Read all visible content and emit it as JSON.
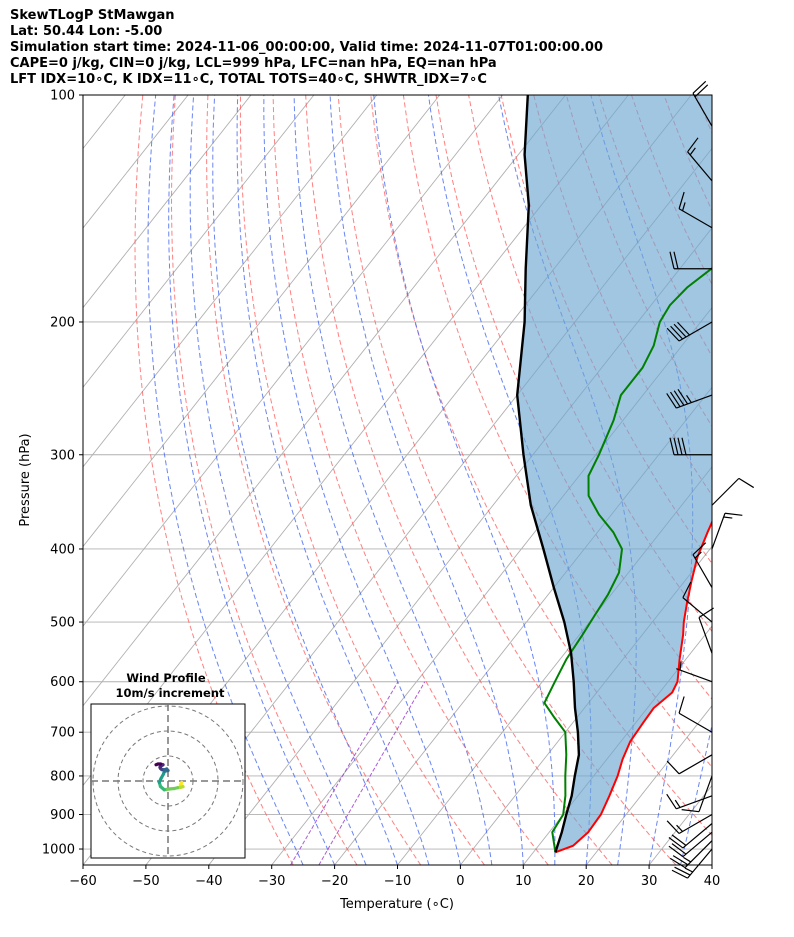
{
  "title_lines": [
    "SkewTLogP StMawgan",
    "Lat: 50.44   Lon: -5.00",
    "Simulation start time: 2024-11-06_00:00:00, Valid time: 2024-11-07T01:00:00.00",
    "CAPE=0 j/kg, CIN=0 j/kg, LCL=999 hPa, LFC=nan hPa, EQ=nan hPa",
    "LFT IDX=10∘C, K IDX=11∘C, TOTAL TOTS=40∘C, SHWTR_IDX=7∘C"
  ],
  "chart_data": [
    {
      "type": "line",
      "kind": "skew-t log-p sounding",
      "xlabel": "Temperature (∘C)",
      "ylabel": "Pressure (hPa)",
      "xlim": [
        -60,
        40
      ],
      "ylim": [
        1050,
        100
      ],
      "y_scale": "log",
      "x_ticks": [
        -60,
        -50,
        -40,
        -30,
        -20,
        -10,
        0,
        10,
        20,
        30,
        40
      ],
      "y_ticks": [
        1000,
        900,
        800,
        700,
        600,
        500,
        400,
        300,
        200,
        100
      ],
      "grid": true,
      "series": [
        {
          "role": "temperature",
          "color": "#ff0000",
          "points": [
            [
              13.5,
              1010
            ],
            [
              15.5,
              990
            ],
            [
              16.2,
              950
            ],
            [
              16.0,
              900
            ],
            [
              15.0,
              850
            ],
            [
              13.8,
              800
            ],
            [
              12.5,
              760
            ],
            [
              11.5,
              720
            ],
            [
              11.2,
              680
            ],
            [
              11.0,
              650
            ],
            [
              12.0,
              620
            ],
            [
              11.5,
              600
            ],
            [
              9.0,
              560
            ],
            [
              6.5,
              520
            ],
            [
              5.0,
              500
            ],
            [
              3.0,
              470
            ],
            [
              1.0,
              440
            ],
            [
              -1.0,
              410
            ],
            [
              -2.5,
              380
            ],
            [
              -4.0,
              350
            ],
            [
              -6.0,
              320
            ],
            [
              -8.0,
              300
            ],
            [
              -10.0,
              280
            ],
            [
              -13.0,
              260
            ],
            [
              -16.0,
              240
            ],
            [
              -18.5,
              220
            ],
            [
              -20.5,
              200
            ],
            [
              -21.5,
              190
            ],
            [
              -21.3,
              180
            ],
            [
              -20.8,
              170
            ],
            [
              -20.0,
              160
            ],
            [
              -19.0,
              150
            ],
            [
              -17.5,
              140
            ],
            [
              -15.0,
              132
            ],
            [
              -12.0,
              125
            ],
            [
              -9.0,
              119
            ],
            [
              -6.0,
              114
            ],
            [
              -3.5,
              109
            ],
            [
              -1.0,
              104
            ],
            [
              0.5,
              100
            ]
          ]
        },
        {
          "role": "dewpoint",
          "color": "#008000",
          "points": [
            [
              13.5,
              1010
            ],
            [
              10.5,
              950
            ],
            [
              10.0,
              900
            ],
            [
              8.0,
              850
            ],
            [
              5.5,
              800
            ],
            [
              3.0,
              750
            ],
            [
              0.0,
              700
            ],
            [
              -3.5,
              670
            ],
            [
              -7.0,
              640
            ],
            [
              -8.0,
              600
            ],
            [
              -9.0,
              560
            ],
            [
              -9.5,
              520
            ],
            [
              -10.0,
              490
            ],
            [
              -10.5,
              460
            ],
            [
              -11.5,
              430
            ],
            [
              -14.0,
              400
            ],
            [
              -17.5,
              380
            ],
            [
              -22.0,
              360
            ],
            [
              -26.0,
              340
            ],
            [
              -28.5,
              320
            ],
            [
              -29.5,
              300
            ],
            [
              -31.5,
              270
            ],
            [
              -33.5,
              250
            ],
            [
              -33.5,
              230
            ],
            [
              -34.5,
              215
            ],
            [
              -36.5,
              200
            ],
            [
              -37.0,
              190
            ],
            [
              -36.5,
              180
            ],
            [
              -35.0,
              170
            ],
            [
              -32.5,
              160
            ],
            [
              -29.5,
              150
            ],
            [
              -28.0,
              140
            ],
            [
              -29.0,
              131
            ],
            [
              -32.0,
              126
            ],
            [
              -30.5,
              120
            ],
            [
              -28.5,
              115
            ],
            [
              -26.0,
              110
            ],
            [
              -24.0,
              105
            ],
            [
              -22.5,
              100
            ]
          ]
        },
        {
          "role": "parcel",
          "color": "#000000",
          "points": [
            [
              13.5,
              1010
            ],
            [
              12.0,
              950
            ],
            [
              10.5,
              900
            ],
            [
              9.0,
              850
            ],
            [
              7.0,
              800
            ],
            [
              5.0,
              750
            ],
            [
              2.0,
              700
            ],
            [
              -1.5,
              650
            ],
            [
              -5.0,
              600
            ],
            [
              -9.0,
              550
            ],
            [
              -14.0,
              500
            ],
            [
              -20.0,
              450
            ],
            [
              -26.5,
              400
            ],
            [
              -34.0,
              350
            ],
            [
              -41.5,
              300
            ],
            [
              -50.0,
              250
            ],
            [
              -58.0,
              200
            ],
            [
              -64.5,
              170
            ],
            [
              -72.0,
              140
            ],
            [
              -79.0,
              120
            ],
            [
              -86.0,
              100
            ]
          ]
        }
      ],
      "wind_barbs": [
        {
          "p": 1000,
          "speed_kt": 25,
          "dir_deg": 220
        },
        {
          "p": 975,
          "speed_kt": 25,
          "dir_deg": 225
        },
        {
          "p": 950,
          "speed_kt": 20,
          "dir_deg": 230
        },
        {
          "p": 925,
          "speed_kt": 20,
          "dir_deg": 230
        },
        {
          "p": 900,
          "speed_kt": 15,
          "dir_deg": 240
        },
        {
          "p": 850,
          "speed_kt": 15,
          "dir_deg": 250
        },
        {
          "p": 800,
          "speed_kt": 10,
          "dir_deg": 200
        },
        {
          "p": 750,
          "speed_kt": 10,
          "dir_deg": 240
        },
        {
          "p": 700,
          "speed_kt": 10,
          "dir_deg": 300
        },
        {
          "p": 600,
          "speed_kt": 5,
          "dir_deg": 290
        },
        {
          "p": 550,
          "speed_kt": 10,
          "dir_deg": 340
        },
        {
          "p": 500,
          "speed_kt": 10,
          "dir_deg": 310
        },
        {
          "p": 450,
          "speed_kt": 15,
          "dir_deg": 330
        },
        {
          "p": 400,
          "speed_kt": 15,
          "dir_deg": 20
        },
        {
          "p": 350,
          "speed_kt": 10,
          "dir_deg": 45
        },
        {
          "p": 300,
          "speed_kt": 40,
          "dir_deg": 270
        },
        {
          "p": 250,
          "speed_kt": 45,
          "dir_deg": 250
        },
        {
          "p": 200,
          "speed_kt": 40,
          "dir_deg": 240
        },
        {
          "p": 170,
          "speed_kt": 20,
          "dir_deg": 270
        },
        {
          "p": 150,
          "speed_kt": 15,
          "dir_deg": 300
        },
        {
          "p": 130,
          "speed_kt": 15,
          "dir_deg": 320
        },
        {
          "p": 110,
          "speed_kt": 20,
          "dir_deg": 330
        }
      ]
    },
    {
      "type": "line",
      "kind": "hodograph",
      "title": "Wind Profile",
      "subtitle": "10m/s increment",
      "ring_step": 10,
      "points_uv": [
        [
          5.5,
          -0.5
        ],
        [
          5.0,
          -1.5
        ],
        [
          5.8,
          -2.0
        ],
        [
          6.0,
          -2.3
        ],
        [
          5.2,
          -2.5
        ],
        [
          3.8,
          -2.7
        ],
        [
          2.5,
          -3.0
        ],
        [
          0.5,
          -3.2
        ],
        [
          -1.5,
          -3.5
        ],
        [
          -3.0,
          -2.2
        ],
        [
          -3.5,
          -0.5
        ],
        [
          -2.8,
          1.0
        ],
        [
          -1.8,
          2.8
        ],
        [
          -1.5,
          3.8
        ],
        [
          -1.0,
          4.0
        ],
        [
          0.0,
          4.2
        ],
        [
          -0.5,
          4.8
        ],
        [
          -1.5,
          4.5
        ],
        [
          -2.5,
          4.6
        ],
        [
          -3.0,
          5.0
        ],
        [
          -3.2,
          5.5
        ],
        [
          -2.8,
          6.0
        ],
        [
          -2.0,
          6.5
        ],
        [
          -3.0,
          6.8
        ],
        [
          -4.0,
          6.8
        ],
        [
          -4.8,
          6.5
        ]
      ],
      "colormap": "viridis"
    }
  ]
}
